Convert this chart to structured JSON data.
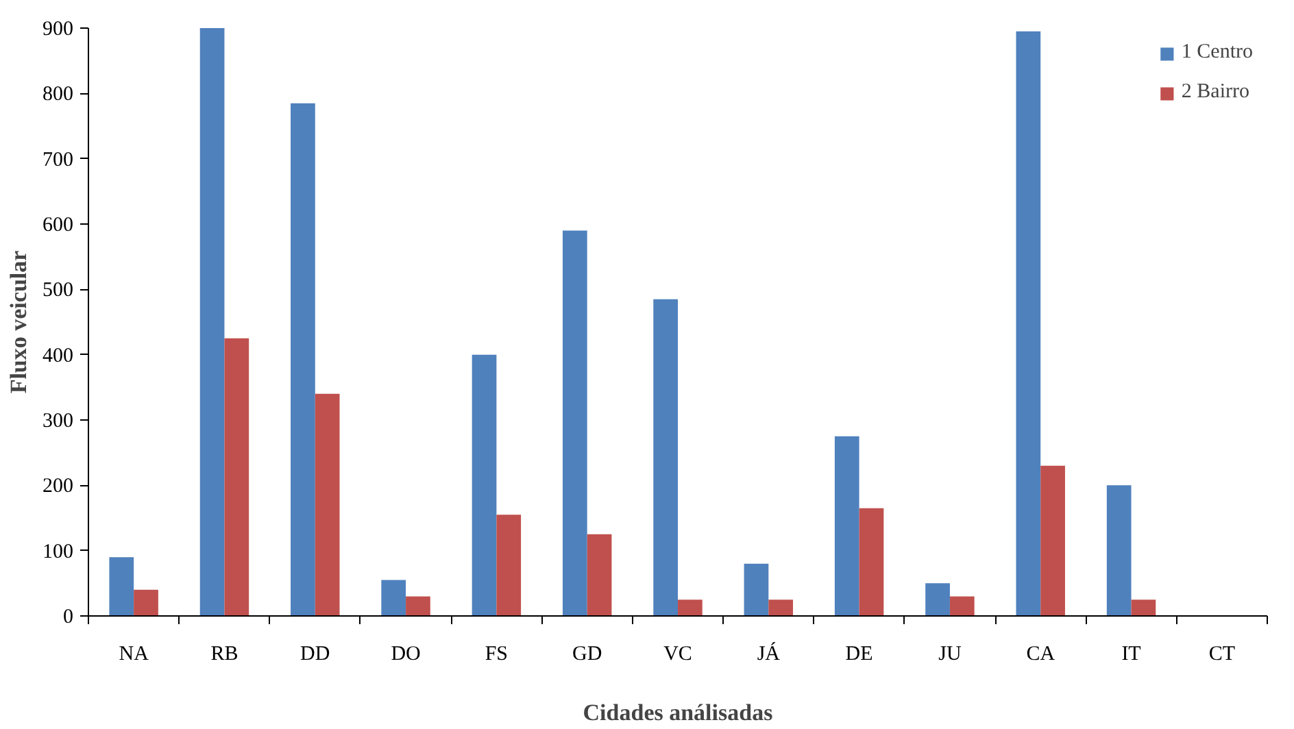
{
  "chart_data": {
    "type": "bar",
    "xlabel": "Cidades análisadas",
    "ylabel": "Fluxo veicular",
    "categories": [
      "NA",
      "RB",
      "DD",
      "DO",
      "FS",
      "GD",
      "VC",
      "JÁ",
      "DE",
      "JU",
      "CA",
      "IT",
      "CT"
    ],
    "series": [
      {
        "name": "1 Centro",
        "color": "#4f81bd",
        "values": [
          90,
          900,
          785,
          55,
          400,
          590,
          485,
          80,
          275,
          50,
          895,
          200,
          null
        ]
      },
      {
        "name": "2 Bairro",
        "color": "#c0504d",
        "values": [
          40,
          425,
          340,
          30,
          155,
          125,
          25,
          25,
          165,
          30,
          230,
          25,
          null
        ]
      }
    ],
    "ylim": [
      0,
      900
    ],
    "yticks": [
      0,
      100,
      200,
      300,
      400,
      500,
      600,
      700,
      800,
      900
    ],
    "grid": false,
    "legend": "top right"
  }
}
